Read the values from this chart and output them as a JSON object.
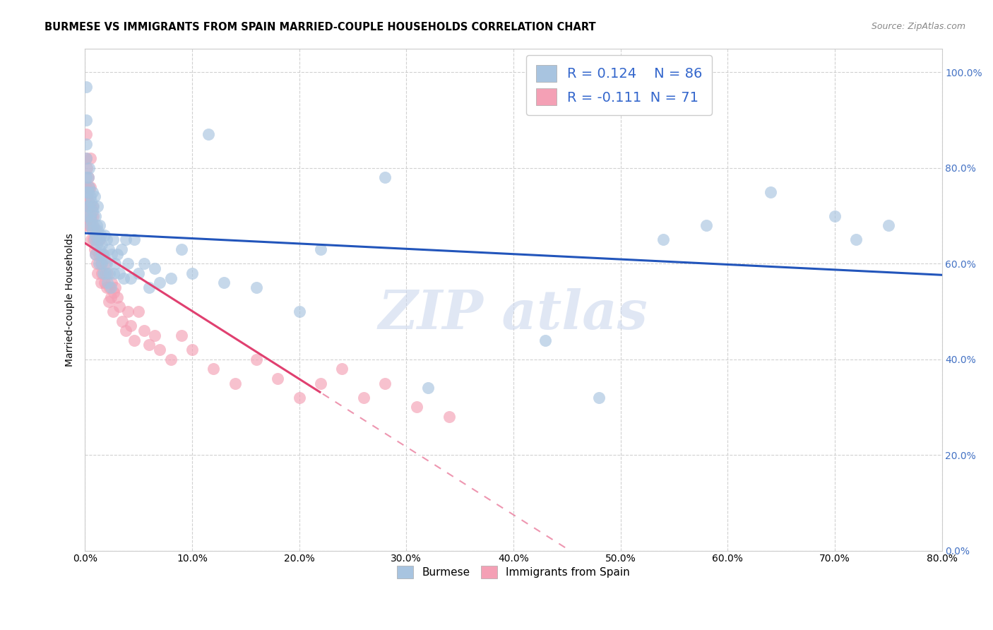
{
  "title": "BURMESE VS IMMIGRANTS FROM SPAIN MARRIED-COUPLE HOUSEHOLDS CORRELATION CHART",
  "source": "Source: ZipAtlas.com",
  "ylabel": "Married-couple Households",
  "xmin": 0.0,
  "xmax": 0.8,
  "ymin": 0.0,
  "ymax": 1.05,
  "r_burmese": 0.124,
  "n_burmese": 86,
  "r_spain": -0.111,
  "n_spain": 71,
  "burmese_color": "#a8c4e0",
  "spain_color": "#f4a0b5",
  "burmese_line_color": "#2255bb",
  "spain_line_color": "#e04070",
  "burmese_x": [
    0.001,
    0.001,
    0.001,
    0.001,
    0.001,
    0.002,
    0.002,
    0.002,
    0.003,
    0.003,
    0.004,
    0.004,
    0.004,
    0.005,
    0.005,
    0.005,
    0.006,
    0.006,
    0.007,
    0.007,
    0.007,
    0.008,
    0.008,
    0.009,
    0.009,
    0.01,
    0.01,
    0.01,
    0.011,
    0.011,
    0.012,
    0.012,
    0.013,
    0.013,
    0.014,
    0.014,
    0.015,
    0.015,
    0.016,
    0.016,
    0.017,
    0.017,
    0.018,
    0.018,
    0.019,
    0.02,
    0.02,
    0.021,
    0.022,
    0.023,
    0.024,
    0.025,
    0.026,
    0.027,
    0.028,
    0.03,
    0.032,
    0.034,
    0.036,
    0.038,
    0.04,
    0.043,
    0.046,
    0.05,
    0.055,
    0.06,
    0.065,
    0.07,
    0.08,
    0.09,
    0.1,
    0.115,
    0.13,
    0.16,
    0.2,
    0.22,
    0.28,
    0.32,
    0.43,
    0.48,
    0.54,
    0.58,
    0.64,
    0.7,
    0.72,
    0.75
  ],
  "burmese_y": [
    0.97,
    0.9,
    0.85,
    0.82,
    0.78,
    0.75,
    0.72,
    0.7,
    0.75,
    0.78,
    0.72,
    0.76,
    0.8,
    0.7,
    0.68,
    0.74,
    0.73,
    0.69,
    0.71,
    0.67,
    0.75,
    0.72,
    0.68,
    0.74,
    0.65,
    0.7,
    0.66,
    0.62,
    0.68,
    0.64,
    0.67,
    0.72,
    0.65,
    0.6,
    0.68,
    0.63,
    0.66,
    0.62,
    0.64,
    0.6,
    0.62,
    0.58,
    0.66,
    0.61,
    0.58,
    0.65,
    0.6,
    0.56,
    0.63,
    0.58,
    0.55,
    0.62,
    0.65,
    0.58,
    0.6,
    0.62,
    0.58,
    0.63,
    0.57,
    0.65,
    0.6,
    0.57,
    0.65,
    0.58,
    0.6,
    0.55,
    0.59,
    0.56,
    0.57,
    0.63,
    0.58,
    0.87,
    0.56,
    0.55,
    0.5,
    0.63,
    0.78,
    0.34,
    0.44,
    0.32,
    0.65,
    0.68,
    0.75,
    0.7,
    0.65,
    0.68
  ],
  "spain_x": [
    0.001,
    0.001,
    0.001,
    0.001,
    0.001,
    0.002,
    0.002,
    0.002,
    0.003,
    0.003,
    0.003,
    0.004,
    0.004,
    0.005,
    0.005,
    0.005,
    0.006,
    0.006,
    0.007,
    0.007,
    0.008,
    0.008,
    0.009,
    0.01,
    0.01,
    0.011,
    0.011,
    0.012,
    0.013,
    0.014,
    0.015,
    0.015,
    0.016,
    0.017,
    0.018,
    0.019,
    0.02,
    0.021,
    0.022,
    0.023,
    0.024,
    0.025,
    0.026,
    0.027,
    0.028,
    0.03,
    0.032,
    0.035,
    0.038,
    0.04,
    0.043,
    0.046,
    0.05,
    0.055,
    0.06,
    0.065,
    0.07,
    0.08,
    0.09,
    0.1,
    0.12,
    0.14,
    0.16,
    0.18,
    0.2,
    0.22,
    0.24,
    0.26,
    0.28,
    0.31,
    0.34
  ],
  "spain_y": [
    0.87,
    0.82,
    0.76,
    0.72,
    0.68,
    0.8,
    0.74,
    0.7,
    0.78,
    0.73,
    0.68,
    0.76,
    0.72,
    0.82,
    0.76,
    0.72,
    0.7,
    0.65,
    0.68,
    0.72,
    0.7,
    0.65,
    0.63,
    0.67,
    0.62,
    0.65,
    0.6,
    0.58,
    0.62,
    0.65,
    0.6,
    0.56,
    0.58,
    0.62,
    0.56,
    0.6,
    0.55,
    0.58,
    0.52,
    0.55,
    0.53,
    0.56,
    0.5,
    0.54,
    0.55,
    0.53,
    0.51,
    0.48,
    0.46,
    0.5,
    0.47,
    0.44,
    0.5,
    0.46,
    0.43,
    0.45,
    0.42,
    0.4,
    0.45,
    0.42,
    0.38,
    0.35,
    0.4,
    0.36,
    0.32,
    0.35,
    0.38,
    0.32,
    0.35,
    0.3,
    0.28
  ],
  "watermark_text": "ZIP atlas",
  "legend_label_1": "Burmese",
  "legend_label_2": "Immigrants from Spain",
  "spain_line_solid_end": 0.22,
  "xtick_labels": [
    "0.0%",
    "10.0%",
    "20.0%",
    "30.0%",
    "40.0%",
    "50.0%",
    "60.0%",
    "70.0%",
    "80.0%"
  ],
  "xtick_vals": [
    0.0,
    0.1,
    0.2,
    0.3,
    0.4,
    0.5,
    0.6,
    0.7,
    0.8
  ],
  "ytick_labels": [
    "0.0%",
    "20.0%",
    "40.0%",
    "60.0%",
    "80.0%",
    "100.0%"
  ],
  "ytick_vals": [
    0.0,
    0.2,
    0.4,
    0.6,
    0.8,
    1.0
  ]
}
